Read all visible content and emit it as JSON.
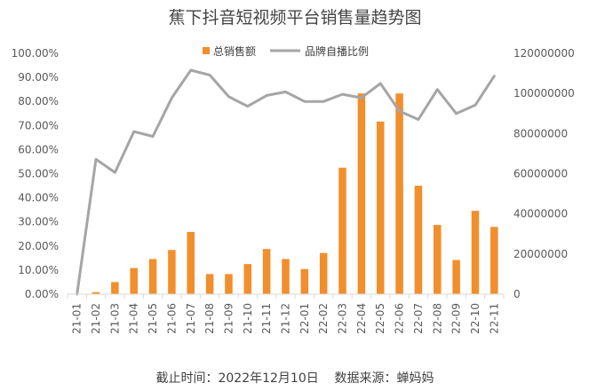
{
  "chart_data": {
    "type": "bar+line",
    "title": "蕉下抖音短视频平台销售量趋势图",
    "categories": [
      "21-01",
      "21-02",
      "21-03",
      "21-04",
      "21-05",
      "21-06",
      "21-07",
      "21-08",
      "21-09",
      "21-10",
      "21-11",
      "21-12",
      "22-01",
      "22-02",
      "22-03",
      "22-04",
      "22-05",
      "22-06",
      "22-07",
      "22-08",
      "22-09",
      "22-10",
      "22-11"
    ],
    "series": [
      {
        "name": "总销售额",
        "type": "bar",
        "axis": "right",
        "color": "#F28E2B",
        "values": [
          0,
          1000000,
          6000000,
          13000000,
          17500000,
          22000000,
          31000000,
          10000000,
          10000000,
          15000000,
          22500000,
          17500000,
          12500000,
          20500000,
          63000000,
          100000000,
          86000000,
          100000000,
          54000000,
          34500000,
          17000000,
          41500000,
          33500000
        ]
      },
      {
        "name": "品牌自播比例",
        "type": "line",
        "axis": "left",
        "color": "#A5A5A5",
        "values": [
          0.0,
          56.0,
          50.5,
          67.5,
          65.5,
          81.5,
          93.0,
          91.0,
          82.0,
          78.0,
          82.5,
          84.0,
          80.0,
          80.0,
          83.0,
          81.5,
          87.5,
          76.0,
          72.5,
          85.0,
          75.0,
          78.5,
          90.5
        ]
      }
    ],
    "left_axis": {
      "min": 0,
      "max": 100,
      "step": 10,
      "tick_labels": [
        "0.00%",
        "10.00%",
        "20.00%",
        "30.00%",
        "40.00%",
        "50.00%",
        "60.00%",
        "70.00%",
        "80.00%",
        "90.00%",
        "100.00%"
      ]
    },
    "right_axis": {
      "min": 0,
      "max": 120000000,
      "step": 20000000,
      "tick_labels": [
        "0",
        "20000000",
        "40000000",
        "60000000",
        "80000000",
        "100000000",
        "120000000"
      ]
    },
    "legend_position": "top-center",
    "grid": false
  },
  "legend": {
    "bar_label": "总销售额",
    "line_label": "品牌自播比例"
  },
  "footer": {
    "text": "截止时间：2022年12月10日    数据来源：蝉妈妈"
  }
}
